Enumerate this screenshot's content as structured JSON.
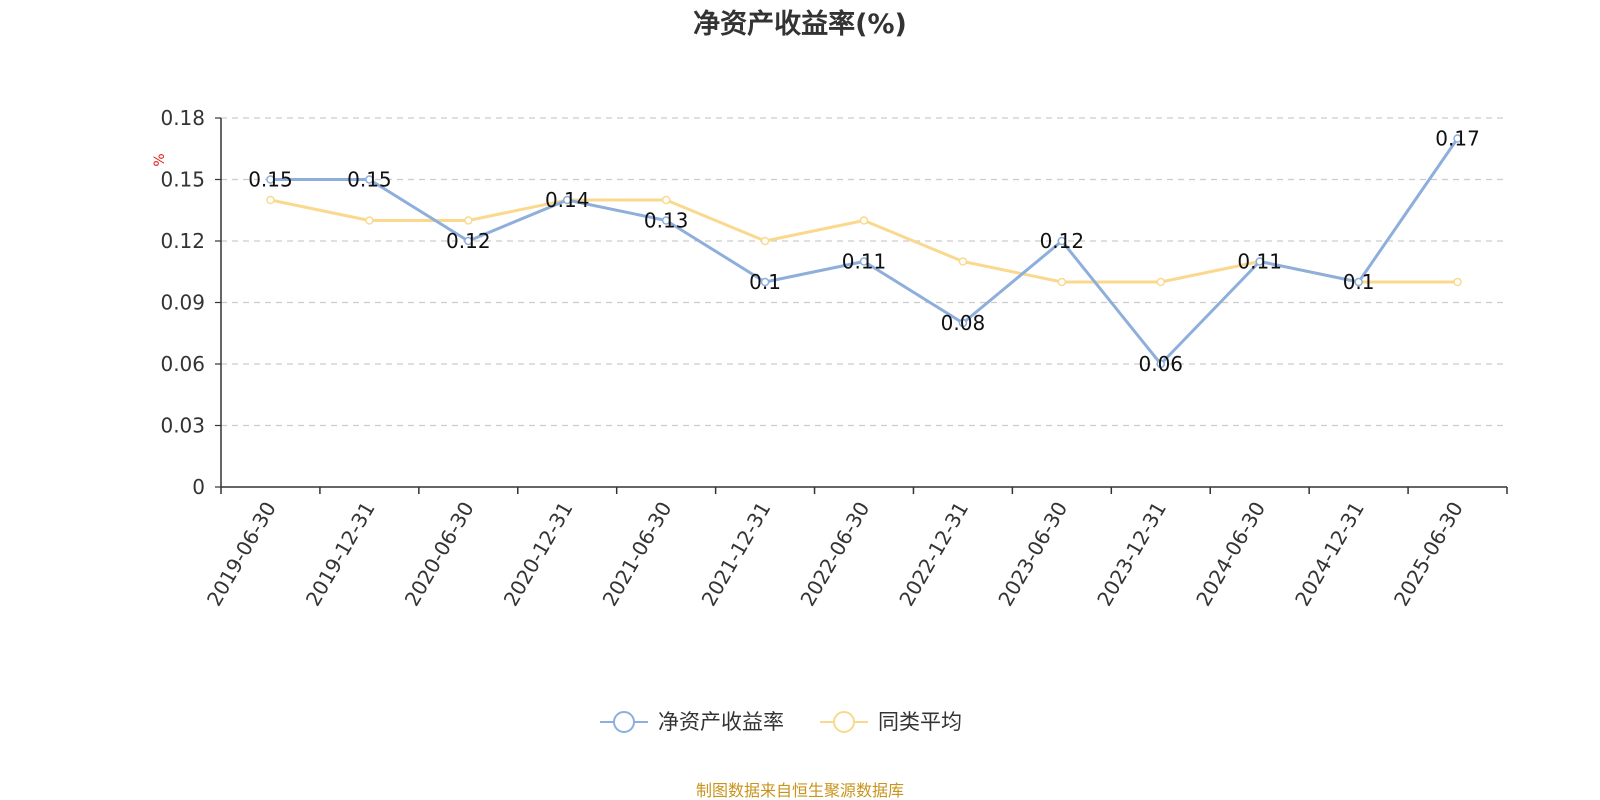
{
  "chart_data": {
    "type": "line",
    "title": "净资产收益率(%)",
    "ylabel": "%",
    "ylim": [
      0,
      0.18
    ],
    "yticks": [
      0,
      0.03,
      0.06,
      0.09,
      0.12,
      0.15,
      0.18
    ],
    "ytick_labels": [
      "0",
      "0.03",
      "0.06",
      "0.09",
      "0.12",
      "0.15",
      "0.18"
    ],
    "categories": [
      "2019-06-30",
      "2019-12-31",
      "2020-06-30",
      "2020-12-31",
      "2021-06-30",
      "2021-12-31",
      "2022-06-30",
      "2022-12-31",
      "2023-06-30",
      "2023-12-31",
      "2024-06-30",
      "2024-12-31",
      "2025-06-30"
    ],
    "grid": true,
    "legend_position": "bottom-center",
    "series": [
      {
        "name": "净资产收益率",
        "color": "#8eaedb",
        "values": [
          0.15,
          0.15,
          0.12,
          0.14,
          0.13,
          0.1,
          0.11,
          0.08,
          0.12,
          0.06,
          0.11,
          0.1,
          0.17
        ],
        "labels": [
          "0.15",
          "0.15",
          "0.12",
          "0.14",
          "0.13",
          "0.1",
          "0.11",
          "0.08",
          "0.12",
          "0.06",
          "0.11",
          "0.1",
          "0.17"
        ]
      },
      {
        "name": "同类平均",
        "color": "#fad98f",
        "values": [
          0.14,
          0.13,
          0.13,
          0.14,
          0.14,
          0.12,
          0.13,
          0.11,
          0.1,
          0.1,
          0.11,
          0.1,
          0.1
        ]
      }
    ],
    "unit_color": "#e02020"
  },
  "source": {
    "text": "制图数据来自恒生聚源数据库",
    "color": "#c8941e"
  }
}
